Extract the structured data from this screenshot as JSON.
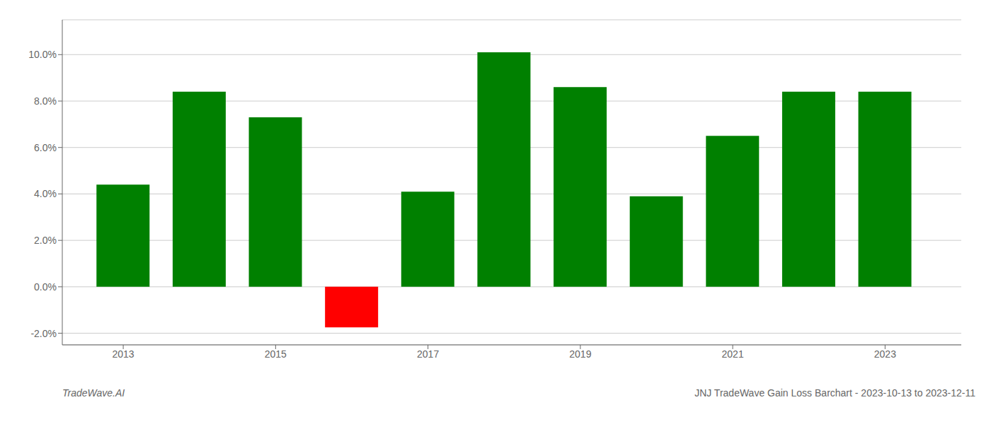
{
  "chart_data": {
    "type": "bar",
    "title": "JNJ TradeWave Gain Loss Barchart - 2023-10-13 to 2023-12-11",
    "annotations": [
      "TradeWave.AI"
    ],
    "x": [
      2013,
      2014,
      2015,
      2016,
      2017,
      2018,
      2019,
      2020,
      2021,
      2022,
      2023
    ],
    "values": [
      0.044,
      0.084,
      0.073,
      -0.0175,
      0.041,
      0.101,
      0.086,
      0.039,
      0.065,
      0.084,
      0.084
    ],
    "colors": [
      "#008000",
      "#008000",
      "#008000",
      "#ff0000",
      "#008000",
      "#008000",
      "#008000",
      "#008000",
      "#008000",
      "#008000",
      "#008000"
    ],
    "xlim": [
      2012.2,
      2024.0
    ],
    "xticks": [
      2013,
      2015,
      2017,
      2019,
      2021,
      2023
    ],
    "ylim": [
      -0.025,
      0.115
    ],
    "yticks": [
      {
        "value": -0.02,
        "label": "-2.0%"
      },
      {
        "value": 0.0,
        "label": "0.0%"
      },
      {
        "value": 0.02,
        "label": "2.0%"
      },
      {
        "value": 0.04,
        "label": "4.0%"
      },
      {
        "value": 0.06,
        "label": "6.0%"
      },
      {
        "value": 0.08,
        "label": "8.0%"
      },
      {
        "value": 0.1,
        "label": "10.0%"
      }
    ],
    "grid": true
  }
}
